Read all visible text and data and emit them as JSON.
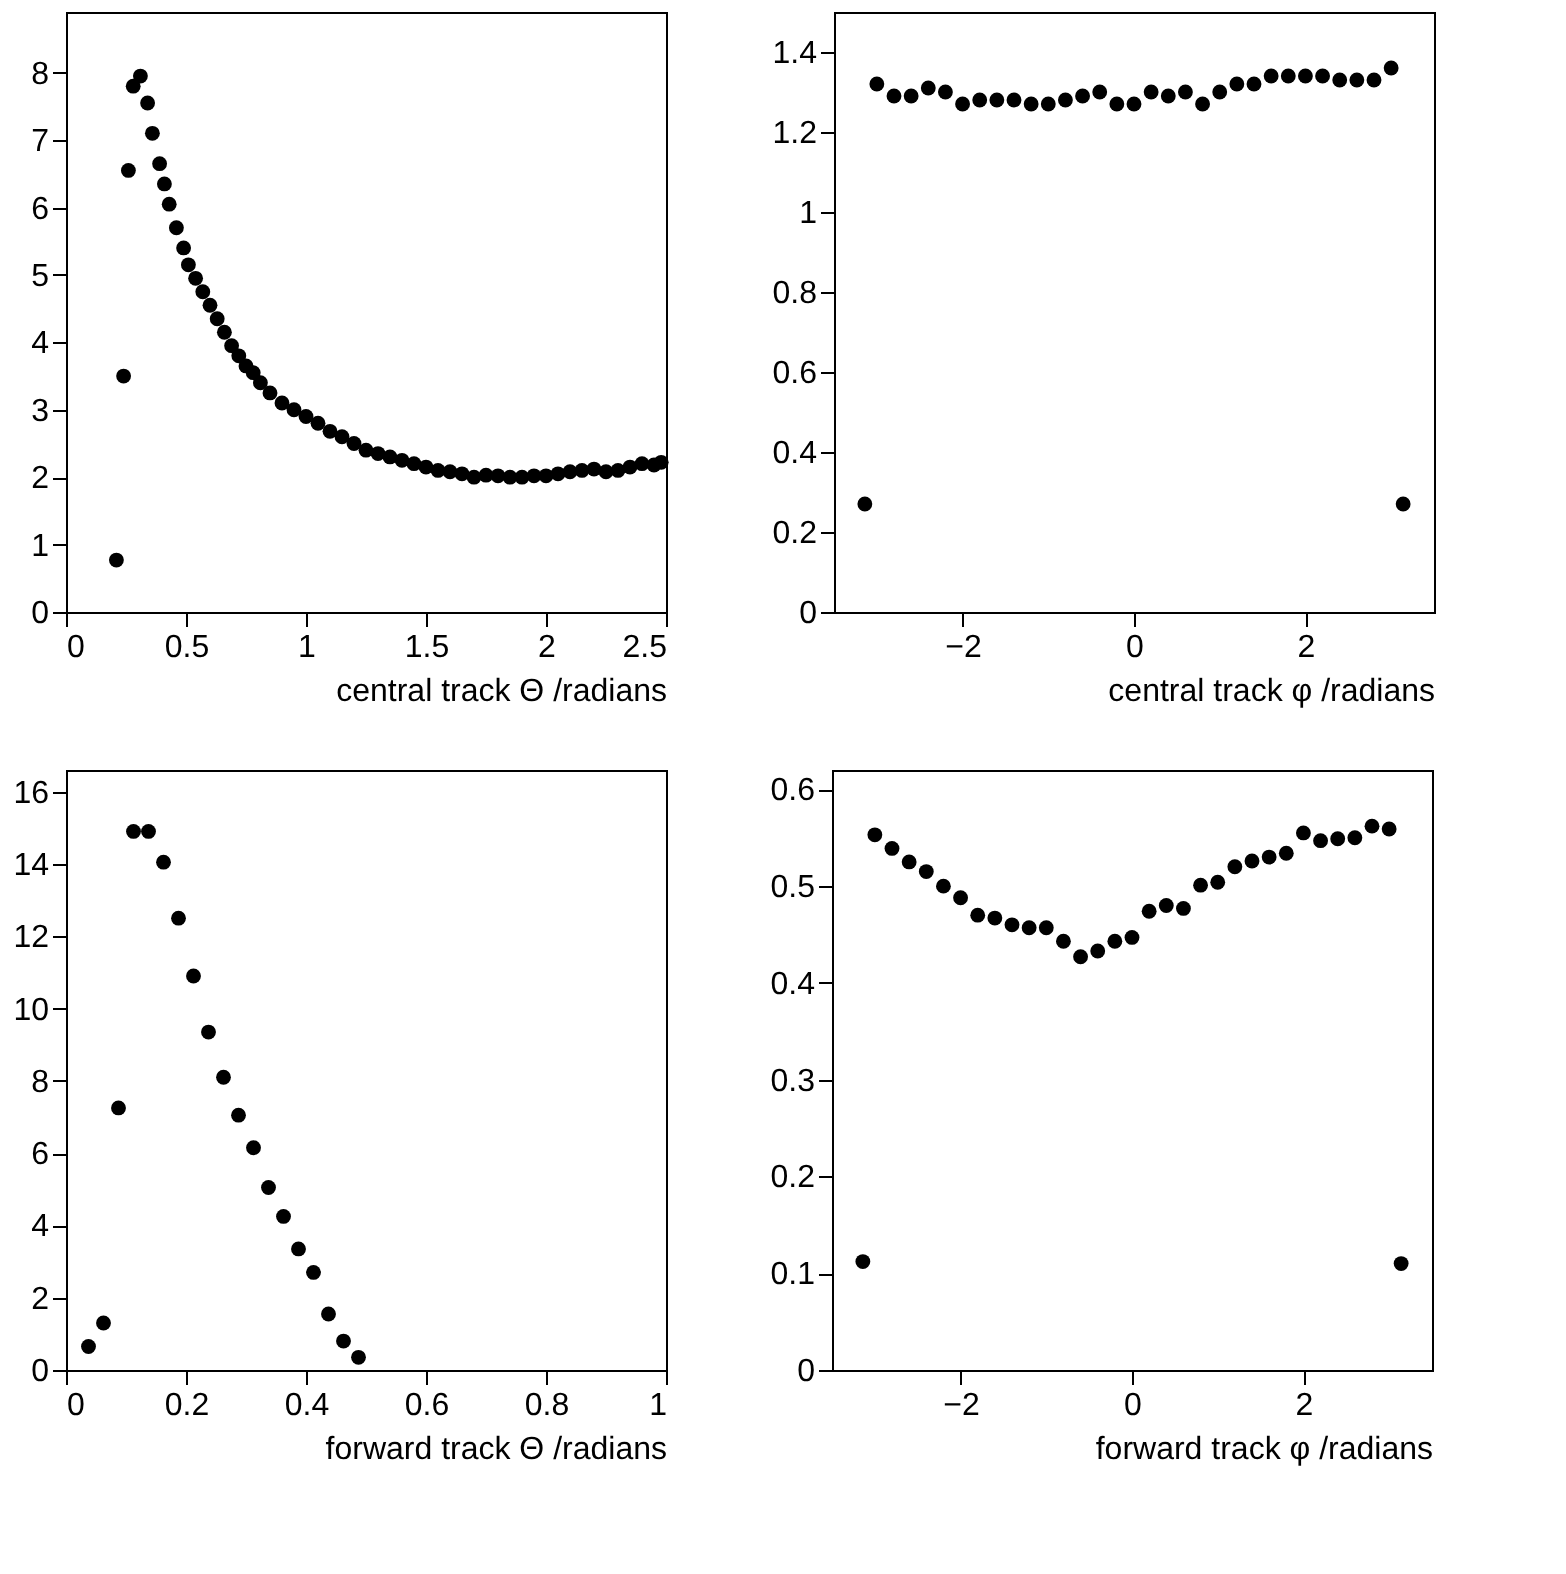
{
  "chart_data": [
    {
      "type": "scatter",
      "xlabel": "central track Θ /radians",
      "color": "#000000",
      "marker": "circle",
      "grid": false,
      "xlim": [
        0,
        2.5
      ],
      "ylim": [
        0,
        8.9
      ],
      "xticks": [
        0,
        0.5,
        1,
        1.5,
        2,
        2.5
      ],
      "yticks": [
        0,
        1,
        2,
        3,
        4,
        5,
        6,
        7,
        8
      ],
      "x": [
        0.21,
        0.24,
        0.26,
        0.28,
        0.31,
        0.34,
        0.36,
        0.39,
        0.41,
        0.43,
        0.46,
        0.49,
        0.51,
        0.54,
        0.57,
        0.6,
        0.63,
        0.66,
        0.69,
        0.72,
        0.75,
        0.78,
        0.81,
        0.85,
        0.9,
        0.95,
        1.0,
        1.05,
        1.1,
        1.15,
        1.2,
        1.25,
        1.3,
        1.35,
        1.4,
        1.45,
        1.5,
        1.55,
        1.6,
        1.65,
        1.7,
        1.75,
        1.8,
        1.85,
        1.9,
        1.95,
        2.0,
        2.05,
        2.1,
        2.15,
        2.2,
        2.25,
        2.3,
        2.35,
        2.4,
        2.45,
        2.48
      ],
      "values": [
        0.77,
        3.5,
        6.55,
        7.8,
        7.95,
        7.55,
        7.1,
        6.65,
        6.35,
        6.05,
        5.7,
        5.4,
        5.15,
        4.95,
        4.75,
        4.55,
        4.35,
        4.15,
        3.95,
        3.8,
        3.65,
        3.55,
        3.4,
        3.25,
        3.1,
        3.0,
        2.9,
        2.8,
        2.68,
        2.6,
        2.5,
        2.4,
        2.35,
        2.3,
        2.25,
        2.2,
        2.15,
        2.1,
        2.08,
        2.05,
        2.0,
        2.03,
        2.02,
        2.0,
        2.0,
        2.02,
        2.02,
        2.05,
        2.08,
        2.1,
        2.12,
        2.08,
        2.1,
        2.15,
        2.2,
        2.18,
        2.22
      ]
    },
    {
      "type": "scatter",
      "xlabel": "central track φ /radians",
      "color": "#000000",
      "marker": "circle",
      "grid": false,
      "xlim": [
        -3.5,
        3.5
      ],
      "ylim": [
        0,
        1.5
      ],
      "xticks": [
        -2,
        0,
        2
      ],
      "yticks": [
        0,
        0.2,
        0.4,
        0.6,
        0.8,
        1,
        1.2,
        1.4
      ],
      "x": [
        -3.14,
        -3.0,
        -2.8,
        -2.6,
        -2.4,
        -2.2,
        -2.0,
        -1.8,
        -1.6,
        -1.4,
        -1.2,
        -1.0,
        -0.8,
        -0.6,
        -0.4,
        -0.2,
        0,
        0.2,
        0.4,
        0.6,
        0.8,
        1.0,
        1.2,
        1.4,
        1.6,
        1.8,
        2.0,
        2.2,
        2.4,
        2.6,
        2.8,
        3.0,
        3.14
      ],
      "values": [
        0.27,
        1.32,
        1.29,
        1.29,
        1.31,
        1.3,
        1.27,
        1.28,
        1.28,
        1.28,
        1.27,
        1.27,
        1.28,
        1.29,
        1.3,
        1.27,
        1.27,
        1.3,
        1.29,
        1.3,
        1.27,
        1.3,
        1.32,
        1.32,
        1.34,
        1.34,
        1.34,
        1.34,
        1.33,
        1.33,
        1.33,
        1.36,
        0.27
      ]
    },
    {
      "type": "scatter",
      "xlabel": "forward track Θ /radians",
      "color": "#000000",
      "marker": "circle",
      "grid": false,
      "xlim": [
        0,
        1
      ],
      "ylim": [
        0,
        16.6
      ],
      "xticks": [
        0,
        0.2,
        0.4,
        0.6,
        0.8,
        1
      ],
      "yticks": [
        0,
        2,
        4,
        6,
        8,
        10,
        12,
        14,
        16
      ],
      "x": [
        0.0375,
        0.0625,
        0.0875,
        0.1125,
        0.1375,
        0.1625,
        0.1875,
        0.2125,
        0.2375,
        0.2625,
        0.2875,
        0.3125,
        0.3375,
        0.3625,
        0.3875,
        0.4125,
        0.4375,
        0.4625,
        0.4875
      ],
      "values": [
        0.65,
        1.3,
        7.25,
        14.9,
        14.9,
        14.05,
        12.5,
        10.9,
        9.35,
        8.1,
        7.05,
        6.15,
        5.05,
        4.25,
        3.35,
        2.7,
        1.55,
        0.8,
        0.35
      ]
    },
    {
      "type": "scatter",
      "xlabel": "forward track φ /radians",
      "color": "#000000",
      "marker": "circle",
      "grid": false,
      "xlim": [
        -3.5,
        3.5
      ],
      "ylim": [
        0,
        0.62
      ],
      "xticks": [
        -2,
        0,
        2
      ],
      "yticks": [
        0,
        0.1,
        0.2,
        0.3,
        0.4,
        0.5,
        0.6
      ],
      "x": [
        -3.14,
        -3.0,
        -2.8,
        -2.6,
        -2.4,
        -2.2,
        -2.0,
        -1.8,
        -1.6,
        -1.4,
        -1.2,
        -1.0,
        -0.8,
        -0.6,
        -0.4,
        -0.2,
        0,
        0.2,
        0.4,
        0.6,
        0.8,
        1.0,
        1.2,
        1.4,
        1.6,
        1.8,
        2.0,
        2.2,
        2.4,
        2.6,
        2.8,
        3.0,
        3.14
      ],
      "values": [
        0.112,
        0.553,
        0.539,
        0.525,
        0.515,
        0.5,
        0.488,
        0.47,
        0.467,
        0.46,
        0.457,
        0.457,
        0.443,
        0.427,
        0.433,
        0.443,
        0.447,
        0.474,
        0.48,
        0.477,
        0.501,
        0.504,
        0.52,
        0.526,
        0.53,
        0.534,
        0.555,
        0.547,
        0.549,
        0.55,
        0.562,
        0.559,
        0.11
      ]
    }
  ]
}
